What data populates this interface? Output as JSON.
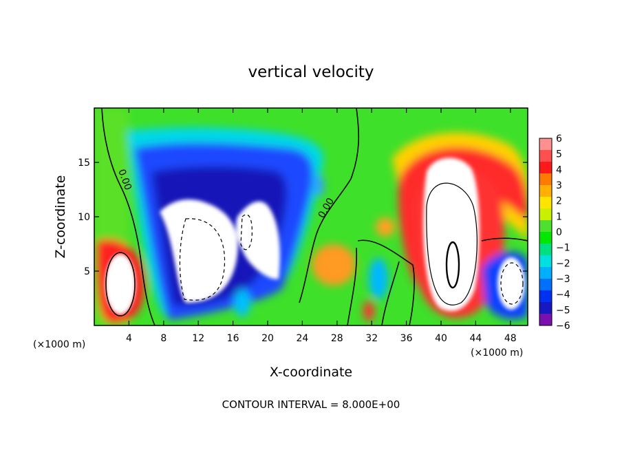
{
  "chart_data": {
    "type": "heatmap",
    "title": "vertical velocity",
    "xlabel": "X-coordinate",
    "ylabel": "Z-coordinate",
    "x_unit_left": "(×1000 m)",
    "x_unit_right": "(×1000 m)",
    "xlim": [
      0,
      50
    ],
    "ylim": [
      0,
      20
    ],
    "x_ticks": [
      4,
      8,
      12,
      16,
      20,
      24,
      28,
      32,
      36,
      40,
      44,
      48
    ],
    "y_ticks": [
      5,
      10,
      15
    ],
    "colorbar": {
      "labels": [
        "6",
        "5",
        "4",
        "3",
        "2",
        "1",
        "0",
        "−1",
        "−2",
        "−3",
        "−4",
        "−5",
        "−6"
      ],
      "colors": [
        "#ff9090",
        "#ff5050",
        "#ff1a1a",
        "#ff7a00",
        "#ffb000",
        "#ffe400",
        "#c8f000",
        "#4ee030",
        "#00e800",
        "#00e080",
        "#00e0e0",
        "#00b0ff",
        "#0070ff",
        "#0030f0",
        "#1818c0",
        "#7a10b0"
      ]
    },
    "contour_label": "0.00",
    "contour_interval_text": "CONTOUR INTERVAL = 8.000E+00",
    "features": [
      {
        "kind": "updraft",
        "x": 3,
        "z": 4,
        "level": 8
      },
      {
        "kind": "downdraft",
        "x": 12,
        "z": 7,
        "level": -8
      },
      {
        "kind": "downdraft",
        "x": 19,
        "z": 8,
        "level": -8
      },
      {
        "kind": "updraft",
        "x": 41,
        "z": 9,
        "level": 16
      },
      {
        "kind": "downdraft",
        "x": 47,
        "z": 4,
        "level": -8
      }
    ]
  }
}
